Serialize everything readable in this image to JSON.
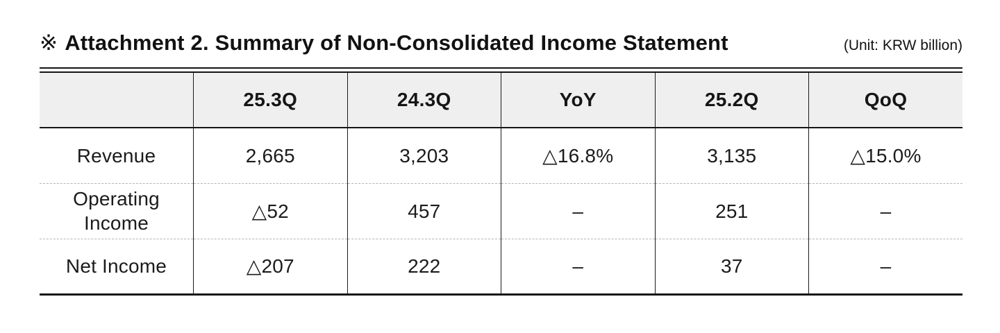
{
  "page": {
    "title_marker": "※",
    "title": "Attachment 2. Summary of Non-Consolidated Income Statement",
    "unit_label": "(Unit: KRW billion)"
  },
  "table": {
    "columns": [
      "",
      "25.3Q",
      "24.3Q",
      "YoY",
      "25.2Q",
      "QoQ"
    ],
    "rows": [
      {
        "label": "Revenue",
        "values": [
          "2,665",
          "3,203",
          "△16.8%",
          "3,135",
          "△15.0%"
        ]
      },
      {
        "label": "Operating Income",
        "values": [
          "△52",
          "457",
          "–",
          "251",
          "–"
        ]
      },
      {
        "label": "Net Income",
        "values": [
          "△207",
          "222",
          "–",
          "37",
          "–"
        ]
      }
    ]
  },
  "colors": {
    "background": "#ffffff",
    "header_background": "#f0efef",
    "solid_rule": "#141414",
    "dashed_rule": "#b3b3b3",
    "text": "#161616"
  }
}
